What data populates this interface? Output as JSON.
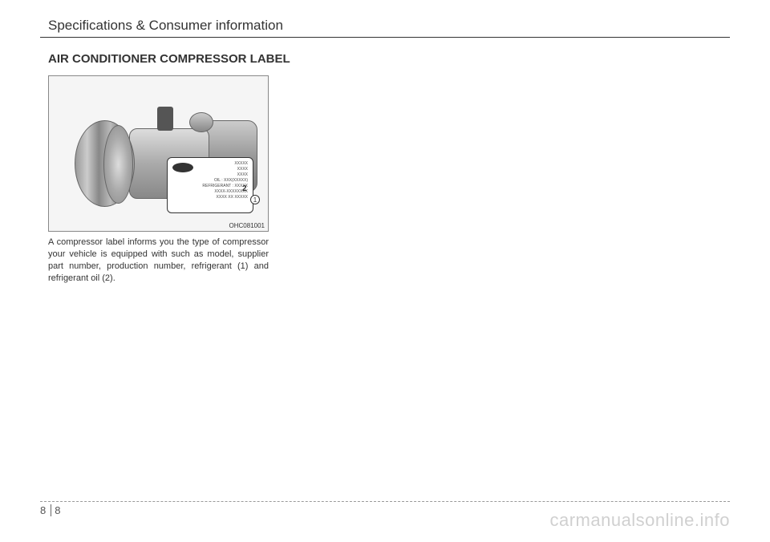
{
  "header": {
    "title": "Specifications & Consumer information"
  },
  "section": {
    "title": "AIR CONDITIONER COMPRESSOR LABEL"
  },
  "figure": {
    "id": "OHC081001",
    "label_lines": {
      "l1": "XXXXX",
      "l2": "XXXX",
      "l3": "XXXX",
      "l4": "OIL : XXX(XXXXX)",
      "l5": "REFRIGERANT : XXXXX",
      "l6": "XXXX-XXXXXXXX",
      "l7": "XXXX XX XXXXX"
    },
    "callout_1": "1",
    "callout_2": "2"
  },
  "body": {
    "text": "A compressor label informs you the type of compressor your vehicle is equipped with such as model, supplier part number, production number, refrigerant (1) and refrigerant oil (2)."
  },
  "footer": {
    "page_left": "8",
    "page_right": "8"
  },
  "watermark": "carmanualsonline.info"
}
